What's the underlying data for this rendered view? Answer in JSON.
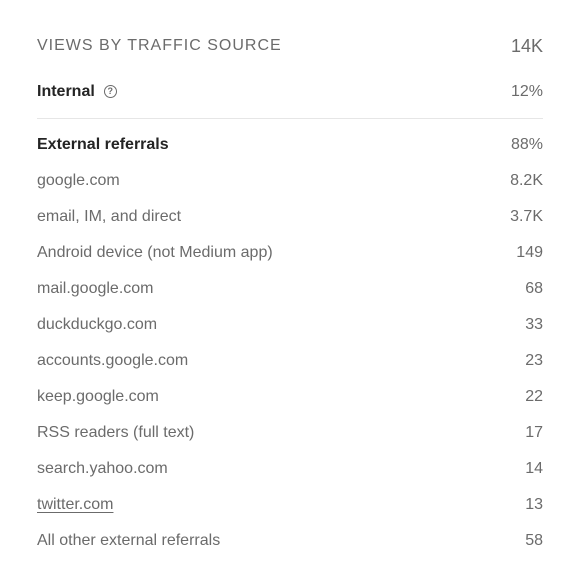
{
  "header": {
    "title": "VIEWS BY TRAFFIC SOURCE",
    "total": "14K"
  },
  "internal": {
    "label": "Internal",
    "value": "12%",
    "help_icon": "question-circle-icon"
  },
  "external": {
    "label": "External referrals",
    "value": "88%",
    "items": [
      {
        "label": "google.com",
        "value": "8.2K"
      },
      {
        "label": "email, IM, and direct",
        "value": "3.7K"
      },
      {
        "label": "Android device (not Medium app)",
        "value": "149"
      },
      {
        "label": "mail.google.com",
        "value": "68"
      },
      {
        "label": "duckduckgo.com",
        "value": "33"
      },
      {
        "label": "accounts.google.com",
        "value": "23"
      },
      {
        "label": "keep.google.com",
        "value": "22"
      },
      {
        "label": "RSS readers (full text)",
        "value": "17"
      },
      {
        "label": "search.yahoo.com",
        "value": "14"
      },
      {
        "label": "twitter.com",
        "value": "13"
      },
      {
        "label": "All other external referrals",
        "value": "58"
      }
    ]
  }
}
